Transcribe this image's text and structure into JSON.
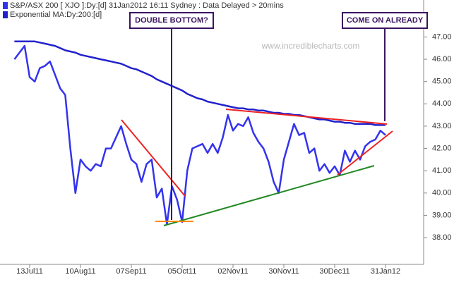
{
  "chart_data": {
    "type": "line",
    "title": "S&P/ASX 200 [ XJO ]:Dy:[d]  31Jan2012 16:11 Sydney : Data Delayed > 20mins",
    "watermark": "www.incrediblecharts.com",
    "annotations": [
      "DOUBLE BOTTOM?",
      "COME ON ALREADY"
    ],
    "categories": [
      null,
      null,
      null,
      "13Jul11",
      null,
      null,
      null,
      null,
      null,
      null,
      null,
      null,
      null,
      "10Aug11",
      null,
      null,
      null,
      null,
      null,
      null,
      null,
      null,
      null,
      "07Sep11",
      null,
      null,
      null,
      null,
      null,
      null,
      null,
      null,
      null,
      "05Oct11",
      null,
      null,
      null,
      null,
      null,
      null,
      null,
      null,
      null,
      "02Nov11",
      null,
      null,
      null,
      null,
      null,
      null,
      null,
      null,
      null,
      "30Nov11",
      null,
      null,
      null,
      null,
      null,
      null,
      null,
      null,
      null,
      "30Dec11",
      null,
      null,
      null,
      null,
      null,
      null,
      null,
      null,
      null,
      "31Jan12"
    ],
    "series": [
      {
        "name": "S&P/ASX 200 [ XJO ]:Dy:[d]  31Jan2012 16:11 Sydney : Data Delayed > 20mins",
        "color": "#3333ee",
        "values": [
          46.0,
          46.3,
          46.6,
          45.2,
          45.0,
          45.6,
          45.7,
          45.9,
          45.3,
          44.7,
          44.4,
          42.0,
          40.0,
          41.5,
          41.2,
          41.0,
          41.3,
          41.2,
          42.0,
          42.0,
          42.5,
          43.0,
          42.2,
          41.5,
          41.3,
          40.5,
          41.3,
          41.5,
          39.8,
          40.2,
          38.6,
          40.3,
          39.7,
          38.7,
          41.0,
          42.0,
          42.1,
          42.2,
          41.8,
          42.2,
          41.8,
          42.5,
          43.5,
          42.8,
          43.1,
          43.0,
          43.4,
          42.7,
          42.3,
          42.0,
          41.4,
          40.5,
          40.0,
          41.5,
          42.3,
          43.1,
          42.6,
          42.7,
          41.8,
          42.0,
          41.0,
          41.3,
          40.9,
          41.2,
          40.8,
          41.9,
          41.4,
          41.9,
          41.5,
          42.1,
          42.3,
          42.4,
          42.8,
          42.6
        ]
      },
      {
        "name": "Exponential MA:Dy:200:[d]",
        "color": "#2222cc",
        "values": [
          46.8,
          46.8,
          46.8,
          46.8,
          46.8,
          46.75,
          46.7,
          46.65,
          46.6,
          46.5,
          46.4,
          46.35,
          46.3,
          46.2,
          46.15,
          46.1,
          46.05,
          46.0,
          45.95,
          45.9,
          45.85,
          45.8,
          45.7,
          45.6,
          45.55,
          45.45,
          45.35,
          45.25,
          45.1,
          45.0,
          44.9,
          44.8,
          44.7,
          44.6,
          44.45,
          44.35,
          44.25,
          44.2,
          44.1,
          44.05,
          44.0,
          43.95,
          43.9,
          43.85,
          43.8,
          43.8,
          43.75,
          43.75,
          43.7,
          43.7,
          43.65,
          43.6,
          43.6,
          43.55,
          43.55,
          43.5,
          43.5,
          43.45,
          43.4,
          43.35,
          43.3,
          43.3,
          43.25,
          43.2,
          43.2,
          43.15,
          43.15,
          43.1,
          43.1,
          43.1,
          43.1,
          43.05,
          43.05,
          43.05
        ]
      }
    ],
    "ylim": [
      36.8,
      48.5
    ],
    "yticks": [
      {
        "value": 38,
        "label": "38.00"
      },
      {
        "value": 39,
        "label": "39.00"
      },
      {
        "value": 40,
        "label": "40.00"
      },
      {
        "value": 41,
        "label": "41.00"
      },
      {
        "value": 42,
        "label": "42.00"
      },
      {
        "value": 43,
        "label": "43.00"
      },
      {
        "value": 44,
        "label": "44.00"
      },
      {
        "value": 45,
        "label": "45.00"
      },
      {
        "value": 46,
        "label": "46.00"
      },
      {
        "value": 47,
        "label": "47.00"
      }
    ],
    "grid": false
  }
}
